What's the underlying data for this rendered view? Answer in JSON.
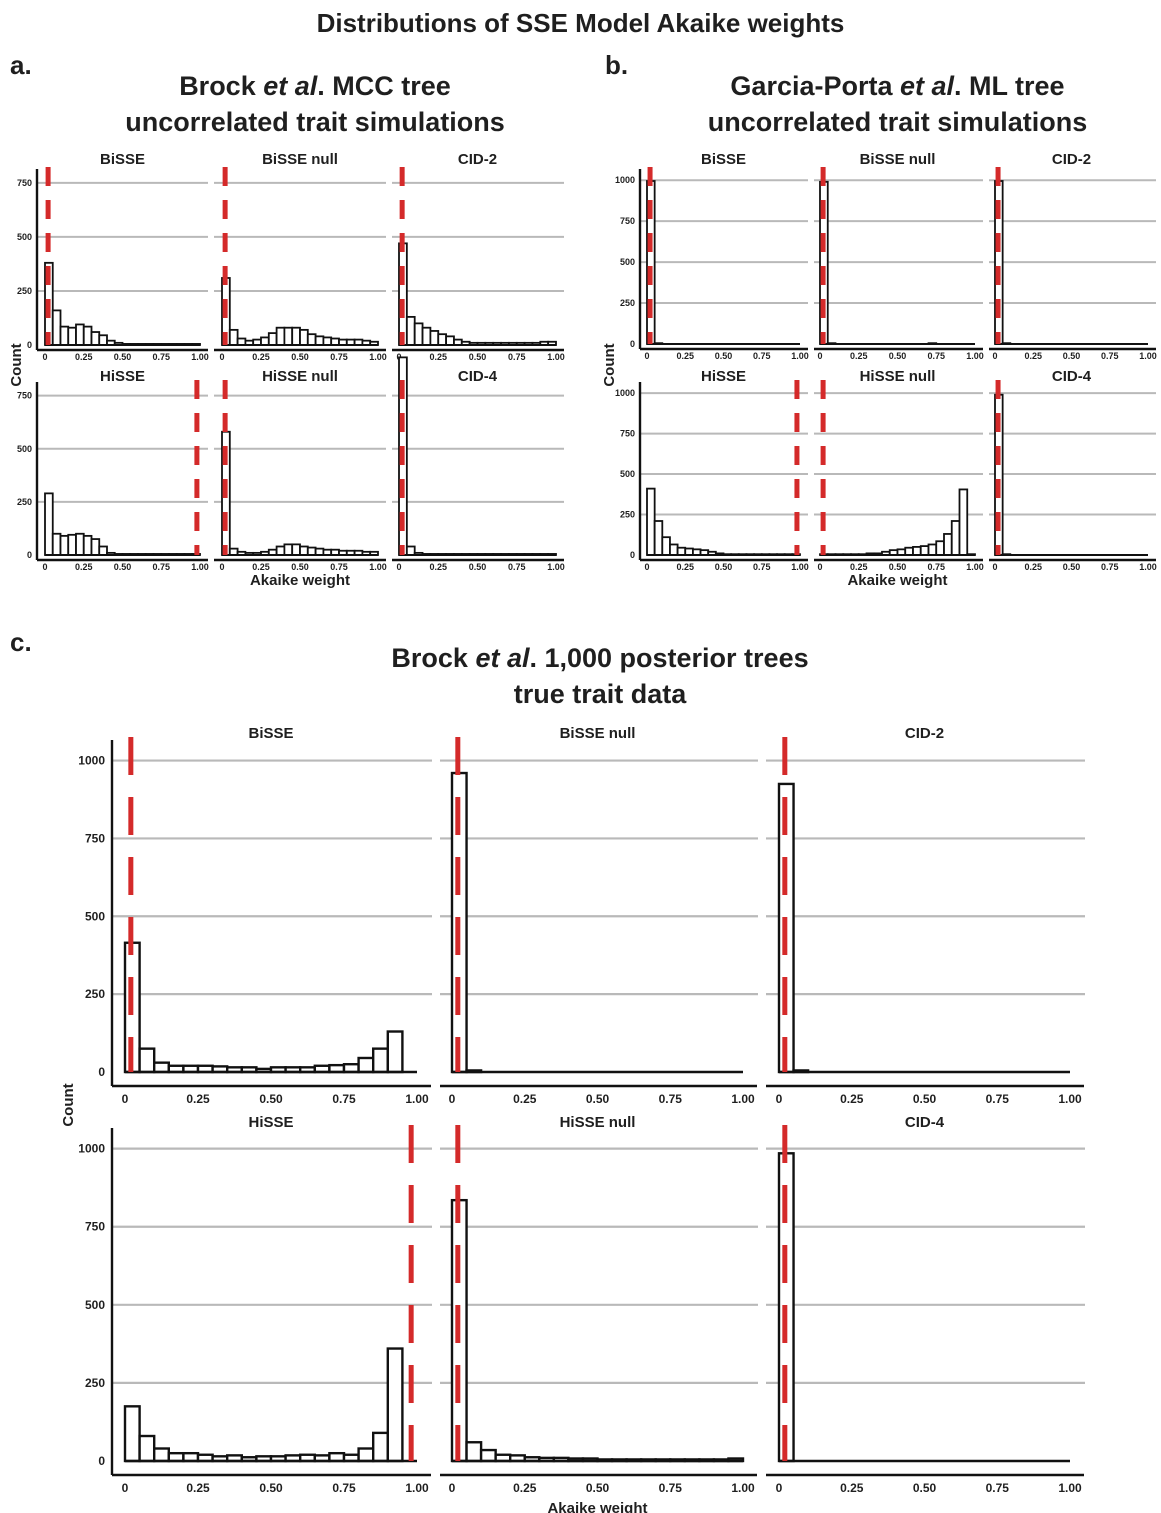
{
  "figure": {
    "title": "Distributions of SSE Model Akaike weights",
    "panels": [
      {
        "label": "a.",
        "title_parts": [
          [
            "Brock ",
            "n"
          ],
          [
            "et al",
            "i"
          ],
          [
            ". MCC tree",
            "n"
          ]
        ],
        "subtitle": "uncorrelated trait simulations"
      },
      {
        "label": "b.",
        "title_parts": [
          [
            "Garcia-Porta ",
            "n"
          ],
          [
            "et al",
            "i"
          ],
          [
            ". ML tree",
            "n"
          ]
        ],
        "subtitle": "uncorrelated trait simulations"
      },
      {
        "label": "c.",
        "title_parts": [
          [
            "Brock ",
            "n"
          ],
          [
            "et al",
            "i"
          ],
          [
            ". 1,000 posterior trees",
            "n"
          ]
        ],
        "subtitle": "true trait data"
      }
    ]
  },
  "colors": {
    "refline": "#d42a2a",
    "grid": "#b9b9b9",
    "bar_stroke": "#111111",
    "axis": "#111111"
  },
  "chart_data": [
    {
      "id": "a-bisse",
      "panel": "a",
      "type": "bar",
      "title": "BiSSE",
      "xlabel": "",
      "ylabel": "Count",
      "xticks": [
        "0",
        "0.25",
        "0.50",
        "0.75",
        "1.00"
      ],
      "yticks": [
        "0",
        "250",
        "500",
        "750"
      ],
      "ylim": [
        0,
        800
      ],
      "bin_width": 0.05,
      "values": [
        380,
        160,
        85,
        80,
        95,
        85,
        60,
        45,
        20,
        10,
        5,
        5,
        5,
        5,
        5,
        5,
        5,
        5,
        5,
        5
      ],
      "refline": 0.02
    },
    {
      "id": "a-bissenull",
      "panel": "a",
      "type": "bar",
      "title": "BiSSE null",
      "xlabel": "",
      "ylabel": "",
      "xticks": [
        "0",
        "0.25",
        "0.50",
        "0.75",
        "1.00"
      ],
      "yticks": [],
      "ylim": [
        0,
        800
      ],
      "bin_width": 0.05,
      "values": [
        310,
        70,
        30,
        20,
        25,
        35,
        55,
        80,
        80,
        80,
        70,
        50,
        40,
        35,
        30,
        25,
        25,
        25,
        20,
        15
      ],
      "refline": 0.02
    },
    {
      "id": "a-cid2",
      "panel": "a",
      "type": "bar",
      "title": "CID-2",
      "xlabel": "",
      "ylabel": "",
      "xticks": [
        "0",
        "0.25",
        "0.50",
        "0.75",
        "1.00"
      ],
      "yticks": [],
      "ylim": [
        0,
        800
      ],
      "bin_width": 0.05,
      "values": [
        470,
        130,
        100,
        80,
        65,
        50,
        40,
        25,
        15,
        10,
        10,
        10,
        10,
        10,
        10,
        10,
        10,
        10,
        15,
        15
      ],
      "refline": 0.02
    },
    {
      "id": "a-hisse",
      "panel": "a",
      "type": "bar",
      "title": "HiSSE",
      "xlabel": "",
      "ylabel": "",
      "xticks": [
        "0",
        "0.25",
        "0.50",
        "0.75",
        "1.00"
      ],
      "yticks": [
        "0",
        "250",
        "500",
        "750"
      ],
      "ylim": [
        0,
        800
      ],
      "bin_width": 0.05,
      "values": [
        290,
        100,
        90,
        95,
        100,
        90,
        75,
        40,
        10,
        5,
        5,
        5,
        5,
        5,
        5,
        5,
        5,
        5,
        5,
        5
      ],
      "refline": 0.98
    },
    {
      "id": "a-hissenull",
      "panel": "a",
      "type": "bar",
      "title": "HiSSE null",
      "xlabel": "Akaike weight",
      "ylabel": "",
      "xticks": [
        "0",
        "0.25",
        "0.50",
        "0.75",
        "1.00"
      ],
      "yticks": [],
      "ylim": [
        0,
        800
      ],
      "bin_width": 0.05,
      "values": [
        580,
        30,
        15,
        10,
        10,
        15,
        25,
        40,
        50,
        50,
        40,
        35,
        30,
        25,
        25,
        20,
        20,
        20,
        15,
        15
      ],
      "refline": 0.02
    },
    {
      "id": "a-cid4",
      "panel": "a",
      "type": "bar",
      "title": "CID-4",
      "xlabel": "",
      "ylabel": "",
      "xticks": [
        "0",
        "0.25",
        "0.50",
        "0.75",
        "1.00"
      ],
      "yticks": [],
      "ylim": [
        0,
        800
      ],
      "bin_width": 0.05,
      "values": [
        930,
        40,
        10,
        5,
        5,
        5,
        5,
        5,
        5,
        5,
        5,
        5,
        5,
        5,
        5,
        5,
        5,
        5,
        5,
        5
      ],
      "refline": 0.02
    },
    {
      "id": "b-bisse",
      "panel": "b",
      "type": "bar",
      "title": "BiSSE",
      "xlabel": "",
      "ylabel": "Count",
      "xticks": [
        "0",
        "0.25",
        "0.50",
        "0.75",
        "1.00"
      ],
      "yticks": [
        "0",
        "250",
        "500",
        "750",
        "1000"
      ],
      "ylim": [
        0,
        1050
      ],
      "bin_width": 0.05,
      "values": [
        995,
        5,
        0,
        0,
        0,
        0,
        0,
        0,
        0,
        0,
        0,
        0,
        0,
        0,
        0,
        0,
        0,
        0,
        0,
        0
      ],
      "refline": 0.02
    },
    {
      "id": "b-bissenull",
      "panel": "b",
      "type": "bar",
      "title": "BiSSE null",
      "xlabel": "",
      "ylabel": "",
      "xticks": [
        "0",
        "0.25",
        "0.50",
        "0.75",
        "1.00"
      ],
      "yticks": [],
      "ylim": [
        0,
        1050
      ],
      "bin_width": 0.05,
      "values": [
        990,
        5,
        0,
        0,
        0,
        0,
        0,
        0,
        0,
        0,
        0,
        0,
        0,
        0,
        5,
        0,
        0,
        0,
        0,
        0
      ],
      "refline": 0.02
    },
    {
      "id": "b-cid2",
      "panel": "b",
      "type": "bar",
      "title": "CID-2",
      "xlabel": "",
      "ylabel": "",
      "xticks": [
        "0",
        "0.25",
        "0.50",
        "0.75",
        "1.00"
      ],
      "yticks": [],
      "ylim": [
        0,
        1050
      ],
      "bin_width": 0.05,
      "values": [
        995,
        5,
        0,
        0,
        0,
        0,
        0,
        0,
        0,
        0,
        0,
        0,
        0,
        0,
        0,
        0,
        0,
        0,
        0,
        0
      ],
      "refline": 0.02
    },
    {
      "id": "b-hisse",
      "panel": "b",
      "type": "bar",
      "title": "HiSSE",
      "xlabel": "",
      "ylabel": "",
      "xticks": [
        "0",
        "0.25",
        "0.50",
        "0.75",
        "1.00"
      ],
      "yticks": [
        "0",
        "250",
        "500",
        "750",
        "1000"
      ],
      "ylim": [
        0,
        1050
      ],
      "bin_width": 0.05,
      "values": [
        410,
        210,
        110,
        65,
        45,
        40,
        35,
        30,
        20,
        10,
        5,
        5,
        5,
        5,
        5,
        5,
        5,
        5,
        5,
        5
      ],
      "refline": 0.98
    },
    {
      "id": "b-hissenull",
      "panel": "b",
      "type": "bar",
      "title": "HiSSE null",
      "xlabel": "Akaike weight",
      "ylabel": "",
      "xticks": [
        "0",
        "0.25",
        "0.50",
        "0.75",
        "1.00"
      ],
      "yticks": [],
      "ylim": [
        0,
        1050
      ],
      "bin_width": 0.05,
      "values": [
        5,
        5,
        5,
        5,
        5,
        5,
        10,
        10,
        20,
        30,
        35,
        45,
        50,
        55,
        65,
        85,
        130,
        210,
        405,
        5
      ],
      "refline": 0.02
    },
    {
      "id": "b-cid4",
      "panel": "b",
      "type": "bar",
      "title": "CID-4",
      "xlabel": "",
      "ylabel": "",
      "xticks": [
        "0",
        "0.25",
        "0.50",
        "0.75",
        "1.00"
      ],
      "yticks": [],
      "ylim": [
        0,
        1050
      ],
      "bin_width": 0.05,
      "values": [
        990,
        5,
        0,
        0,
        0,
        0,
        0,
        0,
        0,
        0,
        0,
        0,
        0,
        0,
        0,
        0,
        0,
        0,
        0,
        0
      ],
      "refline": 0.02
    },
    {
      "id": "c-bisse",
      "panel": "c",
      "type": "bar",
      "title": "BiSSE",
      "xlabel": "",
      "ylabel": "Count",
      "xticks": [
        "0",
        "0.25",
        "0.50",
        "0.75",
        "1.00"
      ],
      "yticks": [
        "0",
        "250",
        "500",
        "750",
        "1000"
      ],
      "ylim": [
        0,
        1050
      ],
      "bin_width": 0.05,
      "values": [
        415,
        75,
        30,
        20,
        20,
        20,
        18,
        15,
        15,
        10,
        15,
        15,
        15,
        20,
        22,
        25,
        45,
        75,
        130,
        0
      ],
      "refline": 0.02
    },
    {
      "id": "c-bissenull",
      "panel": "c",
      "type": "bar",
      "title": "BiSSE null",
      "xlabel": "",
      "ylabel": "",
      "xticks": [
        "0",
        "0.25",
        "0.50",
        "0.75",
        "1.00"
      ],
      "yticks": [],
      "ylim": [
        0,
        1050
      ],
      "bin_width": 0.05,
      "values": [
        960,
        5,
        0,
        0,
        0,
        0,
        0,
        0,
        0,
        0,
        0,
        0,
        0,
        0,
        0,
        0,
        0,
        0,
        0,
        0
      ],
      "refline": 0.02
    },
    {
      "id": "c-cid2",
      "panel": "c",
      "type": "bar",
      "title": "CID-2",
      "xlabel": "",
      "ylabel": "",
      "xticks": [
        "0",
        "0.25",
        "0.50",
        "0.75",
        "1.00"
      ],
      "yticks": [],
      "ylim": [
        0,
        1050
      ],
      "bin_width": 0.05,
      "values": [
        925,
        5,
        0,
        0,
        0,
        0,
        0,
        0,
        0,
        0,
        0,
        0,
        0,
        0,
        0,
        0,
        0,
        0,
        0,
        0
      ],
      "refline": 0.02
    },
    {
      "id": "c-hisse",
      "panel": "c",
      "type": "bar",
      "title": "HiSSE",
      "xlabel": "",
      "ylabel": "",
      "xticks": [
        "0",
        "0.25",
        "0.50",
        "0.75",
        "1.00"
      ],
      "yticks": [
        "0",
        "250",
        "500",
        "750",
        "1000"
      ],
      "ylim": [
        0,
        1050
      ],
      "bin_width": 0.05,
      "values": [
        175,
        80,
        40,
        25,
        25,
        20,
        15,
        18,
        12,
        15,
        15,
        18,
        20,
        18,
        25,
        20,
        40,
        90,
        360,
        0
      ],
      "refline": 0.98
    },
    {
      "id": "c-hissenull",
      "panel": "c",
      "type": "bar",
      "title": "HiSSE null",
      "xlabel": "Akaike weight",
      "ylabel": "",
      "xticks": [
        "0",
        "0.25",
        "0.50",
        "0.75",
        "1.00"
      ],
      "yticks": [],
      "ylim": [
        0,
        1050
      ],
      "bin_width": 0.05,
      "values": [
        835,
        60,
        35,
        20,
        18,
        12,
        10,
        10,
        8,
        8,
        5,
        5,
        5,
        5,
        5,
        5,
        5,
        5,
        5,
        8
      ],
      "refline": 0.02
    },
    {
      "id": "c-cid4",
      "panel": "c",
      "type": "bar",
      "title": "CID-4",
      "xlabel": "",
      "ylabel": "",
      "xticks": [
        "0",
        "0.25",
        "0.50",
        "0.75",
        "1.00"
      ],
      "yticks": [],
      "ylim": [
        0,
        1050
      ],
      "bin_width": 0.05,
      "values": [
        985,
        0,
        0,
        0,
        0,
        0,
        0,
        0,
        0,
        0,
        0,
        0,
        0,
        0,
        0,
        0,
        0,
        0,
        0,
        0
      ],
      "refline": 0.02
    }
  ]
}
